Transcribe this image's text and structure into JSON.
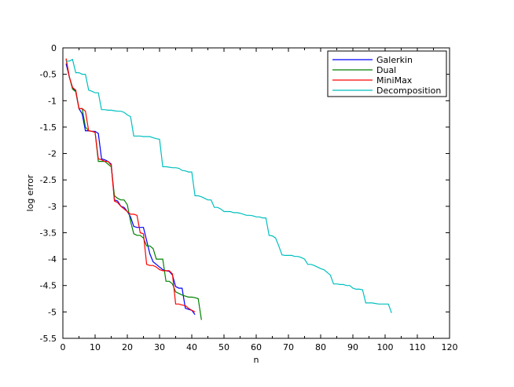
{
  "chart_data": {
    "type": "line",
    "title": "",
    "xlabel": "n",
    "ylabel": "log error",
    "xlim": [
      0,
      120
    ],
    "ylim": [
      -5.5,
      0
    ],
    "xticks": [
      0,
      10,
      20,
      30,
      40,
      50,
      60,
      70,
      80,
      90,
      100,
      110,
      120
    ],
    "yticks": [
      0,
      -0.5,
      -1,
      -1.5,
      -2,
      -2.5,
      -3,
      -3.5,
      -4,
      -4.5,
      -5,
      -5.5
    ],
    "grid": false,
    "legend_position": "top-right",
    "series": [
      {
        "name": "Galerkin",
        "color": "#0000ff",
        "points": [
          [
            1,
            -0.3
          ],
          [
            2,
            -0.55
          ],
          [
            3,
            -0.75
          ],
          [
            4,
            -0.83
          ],
          [
            5,
            -1.15
          ],
          [
            6,
            -1.25
          ],
          [
            7,
            -1.57
          ],
          [
            8,
            -1.57
          ],
          [
            9,
            -1.58
          ],
          [
            10,
            -1.58
          ],
          [
            11,
            -1.62
          ],
          [
            12,
            -2.1
          ],
          [
            13,
            -2.12
          ],
          [
            14,
            -2.15
          ],
          [
            15,
            -2.2
          ],
          [
            16,
            -2.88
          ],
          [
            17,
            -2.9
          ],
          [
            18,
            -3.0
          ],
          [
            19,
            -3.02
          ],
          [
            20,
            -3.1
          ],
          [
            21,
            -3.2
          ],
          [
            22,
            -3.38
          ],
          [
            23,
            -3.4
          ],
          [
            24,
            -3.4
          ],
          [
            25,
            -3.4
          ],
          [
            26,
            -3.65
          ],
          [
            27,
            -3.9
          ],
          [
            28,
            -4.05
          ],
          [
            29,
            -4.1
          ],
          [
            30,
            -4.15
          ],
          [
            31,
            -4.2
          ],
          [
            32,
            -4.22
          ],
          [
            33,
            -4.23
          ],
          [
            34,
            -4.3
          ],
          [
            35,
            -4.52
          ],
          [
            36,
            -4.55
          ],
          [
            37,
            -4.55
          ],
          [
            38,
            -4.93
          ],
          [
            39,
            -4.95
          ],
          [
            40,
            -4.97
          ],
          [
            41,
            -5.05
          ]
        ]
      },
      {
        "name": "Dual",
        "color": "#008000",
        "points": [
          [
            1,
            -0.22
          ],
          [
            2,
            -0.55
          ],
          [
            3,
            -0.78
          ],
          [
            4,
            -0.83
          ],
          [
            5,
            -1.15
          ],
          [
            6,
            -1.15
          ],
          [
            7,
            -1.5
          ],
          [
            8,
            -1.57
          ],
          [
            9,
            -1.58
          ],
          [
            10,
            -1.6
          ],
          [
            11,
            -2.15
          ],
          [
            12,
            -2.15
          ],
          [
            13,
            -2.15
          ],
          [
            14,
            -2.2
          ],
          [
            15,
            -2.25
          ],
          [
            16,
            -2.8
          ],
          [
            17,
            -2.85
          ],
          [
            18,
            -2.88
          ],
          [
            19,
            -2.88
          ],
          [
            20,
            -2.97
          ],
          [
            21,
            -3.28
          ],
          [
            22,
            -3.52
          ],
          [
            23,
            -3.55
          ],
          [
            24,
            -3.55
          ],
          [
            25,
            -3.6
          ],
          [
            26,
            -3.75
          ],
          [
            27,
            -3.75
          ],
          [
            28,
            -3.8
          ],
          [
            29,
            -4.0
          ],
          [
            30,
            -4.0
          ],
          [
            31,
            -4.0
          ],
          [
            32,
            -4.42
          ],
          [
            33,
            -4.42
          ],
          [
            34,
            -4.47
          ],
          [
            35,
            -4.62
          ],
          [
            36,
            -4.65
          ],
          [
            37,
            -4.68
          ],
          [
            38,
            -4.7
          ],
          [
            39,
            -4.72
          ],
          [
            40,
            -4.72
          ],
          [
            41,
            -4.73
          ],
          [
            42,
            -4.75
          ],
          [
            43,
            -5.15
          ]
        ]
      },
      {
        "name": "MiniMax",
        "color": "#ff0000",
        "points": [
          [
            1,
            -0.2
          ],
          [
            2,
            -0.55
          ],
          [
            3,
            -0.75
          ],
          [
            4,
            -0.8
          ],
          [
            5,
            -1.15
          ],
          [
            6,
            -1.15
          ],
          [
            7,
            -1.2
          ],
          [
            8,
            -1.57
          ],
          [
            9,
            -1.58
          ],
          [
            10,
            -1.6
          ],
          [
            11,
            -2.1
          ],
          [
            12,
            -2.12
          ],
          [
            13,
            -2.15
          ],
          [
            14,
            -2.15
          ],
          [
            15,
            -2.22
          ],
          [
            16,
            -2.9
          ],
          [
            17,
            -2.93
          ],
          [
            18,
            -3.0
          ],
          [
            19,
            -3.05
          ],
          [
            20,
            -3.1
          ],
          [
            21,
            -3.15
          ],
          [
            22,
            -3.15
          ],
          [
            23,
            -3.17
          ],
          [
            24,
            -3.5
          ],
          [
            25,
            -3.52
          ],
          [
            26,
            -4.1
          ],
          [
            27,
            -4.12
          ],
          [
            28,
            -4.12
          ],
          [
            29,
            -4.15
          ],
          [
            30,
            -4.2
          ],
          [
            31,
            -4.22
          ],
          [
            32,
            -4.22
          ],
          [
            33,
            -4.22
          ],
          [
            34,
            -4.28
          ],
          [
            35,
            -4.85
          ],
          [
            36,
            -4.85
          ],
          [
            37,
            -4.87
          ],
          [
            38,
            -4.88
          ],
          [
            39,
            -4.93
          ],
          [
            40,
            -4.97
          ],
          [
            41,
            -5.0
          ]
        ]
      },
      {
        "name": "Decomposition",
        "color": "#00bfbf",
        "points": [
          [
            1,
            -0.25
          ],
          [
            2,
            -0.25
          ],
          [
            3,
            -0.22
          ],
          [
            4,
            -0.47
          ],
          [
            5,
            -0.47
          ],
          [
            6,
            -0.5
          ],
          [
            7,
            -0.5
          ],
          [
            8,
            -0.8
          ],
          [
            9,
            -0.82
          ],
          [
            10,
            -0.85
          ],
          [
            11,
            -0.85
          ],
          [
            12,
            -1.17
          ],
          [
            13,
            -1.17
          ],
          [
            14,
            -1.18
          ],
          [
            15,
            -1.18
          ],
          [
            16,
            -1.19
          ],
          [
            17,
            -1.2
          ],
          [
            18,
            -1.2
          ],
          [
            19,
            -1.22
          ],
          [
            20,
            -1.27
          ],
          [
            21,
            -1.3
          ],
          [
            22,
            -1.67
          ],
          [
            23,
            -1.67
          ],
          [
            24,
            -1.67
          ],
          [
            25,
            -1.68
          ],
          [
            26,
            -1.68
          ],
          [
            27,
            -1.68
          ],
          [
            28,
            -1.7
          ],
          [
            29,
            -1.72
          ],
          [
            30,
            -1.73
          ],
          [
            31,
            -2.25
          ],
          [
            32,
            -2.25
          ],
          [
            33,
            -2.26
          ],
          [
            34,
            -2.27
          ],
          [
            35,
            -2.27
          ],
          [
            36,
            -2.28
          ],
          [
            37,
            -2.32
          ],
          [
            38,
            -2.33
          ],
          [
            39,
            -2.35
          ],
          [
            40,
            -2.35
          ],
          [
            41,
            -2.8
          ],
          [
            42,
            -2.8
          ],
          [
            43,
            -2.82
          ],
          [
            44,
            -2.85
          ],
          [
            45,
            -2.88
          ],
          [
            46,
            -2.88
          ],
          [
            47,
            -3.02
          ],
          [
            48,
            -3.02
          ],
          [
            49,
            -3.05
          ],
          [
            50,
            -3.1
          ],
          [
            51,
            -3.1
          ],
          [
            52,
            -3.1
          ],
          [
            53,
            -3.12
          ],
          [
            54,
            -3.12
          ],
          [
            55,
            -3.13
          ],
          [
            56,
            -3.15
          ],
          [
            57,
            -3.17
          ],
          [
            58,
            -3.17
          ],
          [
            59,
            -3.18
          ],
          [
            60,
            -3.2
          ],
          [
            61,
            -3.2
          ],
          [
            62,
            -3.22
          ],
          [
            63,
            -3.22
          ],
          [
            64,
            -3.55
          ],
          [
            65,
            -3.56
          ],
          [
            66,
            -3.6
          ],
          [
            67,
            -3.75
          ],
          [
            68,
            -3.92
          ],
          [
            69,
            -3.93
          ],
          [
            70,
            -3.93
          ],
          [
            71,
            -3.93
          ],
          [
            72,
            -3.95
          ],
          [
            73,
            -3.95
          ],
          [
            74,
            -3.97
          ],
          [
            75,
            -4.0
          ],
          [
            76,
            -4.1
          ],
          [
            77,
            -4.1
          ],
          [
            78,
            -4.12
          ],
          [
            79,
            -4.15
          ],
          [
            80,
            -4.18
          ],
          [
            81,
            -4.2
          ],
          [
            82,
            -4.25
          ],
          [
            83,
            -4.3
          ],
          [
            84,
            -4.47
          ],
          [
            85,
            -4.47
          ],
          [
            86,
            -4.48
          ],
          [
            87,
            -4.48
          ],
          [
            88,
            -4.5
          ],
          [
            89,
            -4.5
          ],
          [
            90,
            -4.55
          ],
          [
            91,
            -4.57
          ],
          [
            92,
            -4.57
          ],
          [
            93,
            -4.58
          ],
          [
            94,
            -4.83
          ],
          [
            95,
            -4.83
          ],
          [
            96,
            -4.83
          ],
          [
            97,
            -4.84
          ],
          [
            98,
            -4.85
          ],
          [
            99,
            -4.85
          ],
          [
            100,
            -4.85
          ],
          [
            101,
            -4.85
          ],
          [
            102,
            -5.02
          ]
        ]
      }
    ]
  }
}
